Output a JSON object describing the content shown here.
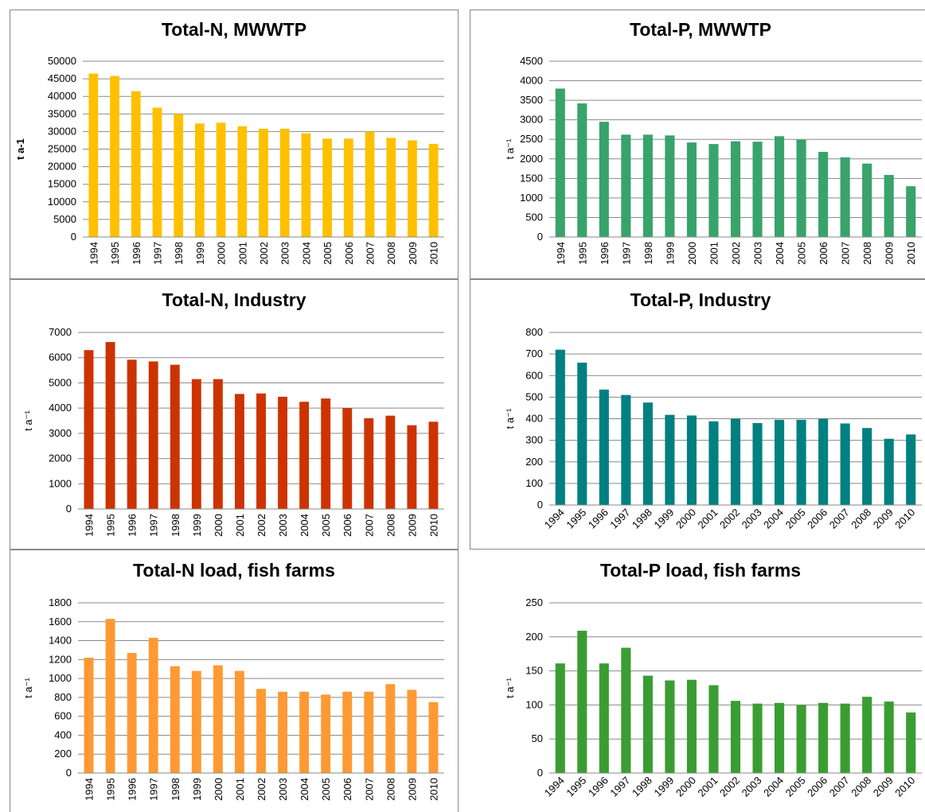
{
  "chart_data": [
    {
      "type": "bar",
      "title": "Total-N, MWWTP",
      "y_label": "t a-1",
      "x_label_rotation": -90,
      "color": "#ffc000",
      "categories": [
        "1994",
        "1995",
        "1996",
        "1997",
        "1998",
        "1999",
        "2000",
        "2001",
        "2002",
        "2003",
        "2004",
        "2005",
        "2006",
        "2007",
        "2008",
        "2009",
        "2010"
      ],
      "values": [
        46500,
        45800,
        41500,
        36800,
        35000,
        32300,
        32500,
        31500,
        30800,
        30800,
        29500,
        28000,
        28000,
        30000,
        28200,
        27500,
        26500
      ],
      "ylim": [
        0,
        50000
      ],
      "yticks": [
        0,
        5000,
        10000,
        15000,
        20000,
        25000,
        30000,
        35000,
        40000,
        45000,
        50000
      ],
      "grid": true
    },
    {
      "type": "bar",
      "title": "Total-P, MWWTP",
      "y_label": "t a⁻¹",
      "x_label_rotation": -90,
      "color": "#38a36b",
      "categories": [
        "1994",
        "1995",
        "1996",
        "1997",
        "1998",
        "1999",
        "2000",
        "2001",
        "2002",
        "2003",
        "2004",
        "2005",
        "2006",
        "2007",
        "2008",
        "2009",
        "2010"
      ],
      "values": [
        3800,
        3420,
        2950,
        2620,
        2620,
        2600,
        2420,
        2380,
        2450,
        2440,
        2580,
        2490,
        2180,
        2040,
        1880,
        1590,
        1300
      ],
      "ylim": [
        0,
        4500
      ],
      "yticks": [
        0,
        500,
        1000,
        1500,
        2000,
        2500,
        3000,
        3500,
        4000,
        4500
      ],
      "grid": true
    },
    {
      "type": "bar",
      "title": "Total-N, Industry",
      "y_label": "t a⁻¹",
      "x_label_rotation": -90,
      "color": "#cc3300",
      "categories": [
        "1994",
        "1995",
        "1996",
        "1997",
        "1998",
        "1999",
        "2000",
        "2001",
        "2002",
        "2003",
        "2004",
        "2005",
        "2006",
        "2007",
        "2008",
        "2009",
        "2010"
      ],
      "values": [
        6300,
        6620,
        5920,
        5850,
        5720,
        5150,
        5150,
        4560,
        4580,
        4450,
        4250,
        4380,
        4000,
        3600,
        3700,
        3320,
        3460
      ],
      "ylim": [
        0,
        7000
      ],
      "yticks": [
        0,
        1000,
        2000,
        3000,
        4000,
        5000,
        6000,
        7000
      ],
      "grid": true
    },
    {
      "type": "bar",
      "title": "Total-P, Industry",
      "y_label": "t a⁻¹",
      "x_label_rotation": -45,
      "color": "#008080",
      "categories": [
        "1994",
        "1995",
        "1996",
        "1997",
        "1998",
        "1999",
        "2000",
        "2001",
        "2002",
        "2003",
        "2004",
        "2005",
        "2006",
        "2007",
        "2008",
        "2009",
        "2010"
      ],
      "values": [
        720,
        660,
        535,
        510,
        475,
        418,
        415,
        388,
        400,
        380,
        395,
        395,
        400,
        378,
        357,
        307,
        327
      ],
      "ylim": [
        0,
        800
      ],
      "yticks": [
        0,
        100,
        200,
        300,
        400,
        500,
        600,
        700,
        800
      ],
      "grid": true
    },
    {
      "type": "bar",
      "title": "Total-N load, fish farms",
      "y_label": "t a⁻¹",
      "x_label_rotation": -90,
      "color": "#ff9933",
      "categories": [
        "1994",
        "1995",
        "1996",
        "1997",
        "1998",
        "1999",
        "2000",
        "2001",
        "2002",
        "2003",
        "2004",
        "2005",
        "2006",
        "2007",
        "2008",
        "2009",
        "2010"
      ],
      "values": [
        1220,
        1630,
        1270,
        1430,
        1130,
        1080,
        1140,
        1080,
        890,
        860,
        860,
        830,
        860,
        860,
        940,
        880,
        750
      ],
      "ylim": [
        0,
        1800
      ],
      "yticks": [
        0,
        200,
        400,
        600,
        800,
        1000,
        1200,
        1400,
        1600,
        1800
      ],
      "grid": true
    },
    {
      "type": "bar",
      "title": "Total-P load, fish farms",
      "y_label": "t a⁻¹",
      "x_label_rotation": -45,
      "color": "#3a9d32",
      "categories": [
        "1994",
        "1995",
        "1996",
        "1997",
        "1998",
        "1999",
        "2000",
        "2001",
        "2002",
        "2003",
        "2004",
        "2005",
        "2006",
        "2007",
        "2008",
        "2009",
        "2010"
      ],
      "values": [
        161,
        209,
        161,
        184,
        143,
        136,
        137,
        129,
        106,
        102,
        103,
        100,
        103,
        102,
        112,
        105,
        89
      ],
      "ylim": [
        0,
        250
      ],
      "yticks": [
        0,
        50,
        100,
        150,
        200,
        250
      ],
      "grid": true
    }
  ]
}
